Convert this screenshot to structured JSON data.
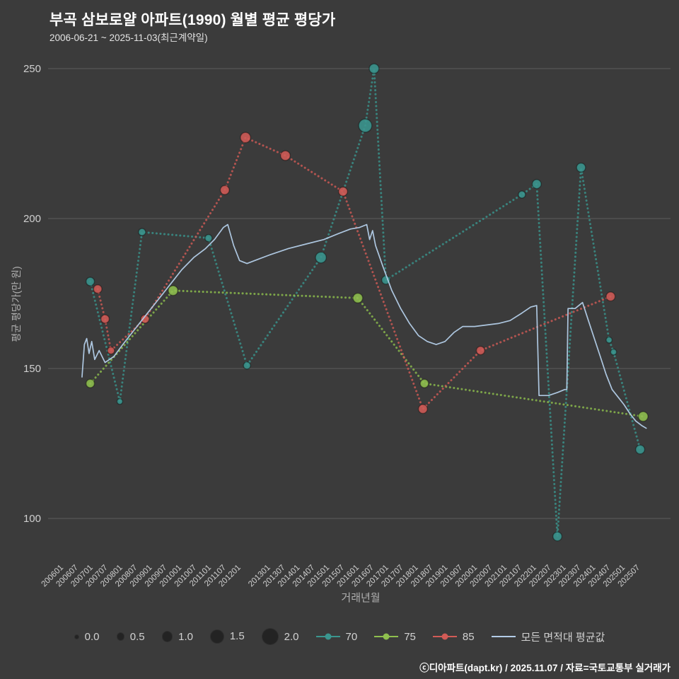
{
  "chart_data": {
    "type": "scatter",
    "title": "부곡 삼보로얄 아파트(1990) 월별 평균 평당가",
    "subtitle": "2006-06-21 ~ 2025-11-03(최근계약일)",
    "xlabel": "거래년월",
    "ylabel": "평균 평당가(만 원)",
    "yticks": [
      100,
      150,
      200,
      250
    ],
    "ylim": [
      88,
      255
    ],
    "grid": "horizontal",
    "legend_position": "bottom",
    "size_legend": [
      "0.0",
      "0.5",
      "1.0",
      "1.5",
      "2.0"
    ],
    "xtick_labels": [
      "200601",
      "200607",
      "200701",
      "200707",
      "200801",
      "200807",
      "200901",
      "200907",
      "201001",
      "201007",
      "201101",
      "201107",
      "201201",
      "201301",
      "201307",
      "201401",
      "201407",
      "201501",
      "201507",
      "201601",
      "201607",
      "201701",
      "201707",
      "201801",
      "201807",
      "201901",
      "201907",
      "202001",
      "202007",
      "202101",
      "202107",
      "202201",
      "202207",
      "202301",
      "202307",
      "202401",
      "202407",
      "202501",
      "202507"
    ],
    "series": [
      {
        "name": "70",
        "color": "#3a968f",
        "type": "scatter",
        "points": [
          [
            2006.9,
            179,
            0.8
          ],
          [
            2007.9,
            139,
            0.35
          ],
          [
            2008.65,
            195.5,
            0.6
          ],
          [
            2010.9,
            193.5,
            0.6
          ],
          [
            2012.2,
            151,
            0.6
          ],
          [
            2014.7,
            187,
            1.2
          ],
          [
            2016.2,
            231,
            1.6
          ],
          [
            2016.5,
            250,
            1.0
          ],
          [
            2016.9,
            179.5,
            0.8
          ],
          [
            2021.5,
            208,
            0.6
          ],
          [
            2022.0,
            211.5,
            0.9
          ],
          [
            2022.7,
            94,
            0.9
          ],
          [
            2023.5,
            217,
            0.9
          ],
          [
            2024.45,
            159.5,
            0.4
          ],
          [
            2024.6,
            155.5,
            0.4
          ],
          [
            2025.5,
            123,
            0.9
          ]
        ]
      },
      {
        "name": "75",
        "color": "#8fc04e",
        "type": "scatter",
        "points": [
          [
            2006.9,
            145,
            0.8
          ],
          [
            2009.7,
            176,
            1.0
          ],
          [
            2015.95,
            173.5,
            1.0
          ],
          [
            2018.2,
            145,
            0.8
          ],
          [
            2025.6,
            134,
            1.0
          ]
        ]
      },
      {
        "name": "85",
        "color": "#d25b56",
        "type": "scatter",
        "points": [
          [
            2007.15,
            176.5,
            0.8
          ],
          [
            2007.4,
            166.5,
            0.8
          ],
          [
            2007.6,
            156,
            0.6
          ],
          [
            2008.75,
            166.5,
            0.8
          ],
          [
            2011.45,
            209.5,
            0.9
          ],
          [
            2012.15,
            227,
            1.1
          ],
          [
            2013.5,
            221,
            1.0
          ],
          [
            2015.45,
            209,
            0.9
          ],
          [
            2018.15,
            136.5,
            0.9
          ],
          [
            2020.1,
            156,
            0.8
          ],
          [
            2024.5,
            174,
            0.9
          ]
        ]
      },
      {
        "name": "모든 면적대 평균값",
        "color": "#b3cde8",
        "type": "line",
        "points": [
          [
            2006.62,
            147
          ],
          [
            2006.7,
            158
          ],
          [
            2006.78,
            160
          ],
          [
            2006.86,
            155
          ],
          [
            2006.95,
            159
          ],
          [
            2007.05,
            153
          ],
          [
            2007.2,
            156
          ],
          [
            2007.4,
            152
          ],
          [
            2007.7,
            154
          ],
          [
            2008.0,
            158
          ],
          [
            2008.4,
            163
          ],
          [
            2008.8,
            168
          ],
          [
            2009.2,
            173
          ],
          [
            2009.6,
            178
          ],
          [
            2010.0,
            183
          ],
          [
            2010.4,
            187
          ],
          [
            2010.8,
            190
          ],
          [
            2011.1,
            193
          ],
          [
            2011.4,
            197
          ],
          [
            2011.55,
            198
          ],
          [
            2011.75,
            191
          ],
          [
            2011.95,
            186
          ],
          [
            2012.2,
            185
          ],
          [
            2012.6,
            186.5
          ],
          [
            2013.0,
            188
          ],
          [
            2013.6,
            190
          ],
          [
            2014.2,
            191.5
          ],
          [
            2014.8,
            193
          ],
          [
            2015.3,
            195
          ],
          [
            2015.7,
            196.5
          ],
          [
            2016.0,
            197
          ],
          [
            2016.25,
            198
          ],
          [
            2016.35,
            193
          ],
          [
            2016.45,
            196
          ],
          [
            2016.55,
            191
          ],
          [
            2016.8,
            184
          ],
          [
            2017.1,
            176
          ],
          [
            2017.4,
            170
          ],
          [
            2017.7,
            165
          ],
          [
            2018.0,
            161
          ],
          [
            2018.3,
            159
          ],
          [
            2018.6,
            158
          ],
          [
            2018.9,
            159
          ],
          [
            2019.2,
            162
          ],
          [
            2019.5,
            164
          ],
          [
            2019.9,
            164
          ],
          [
            2020.3,
            164.5
          ],
          [
            2020.7,
            165
          ],
          [
            2021.1,
            166
          ],
          [
            2021.5,
            168.5
          ],
          [
            2021.8,
            170.5
          ],
          [
            2022.0,
            171
          ],
          [
            2022.08,
            141
          ],
          [
            2022.4,
            141
          ],
          [
            2022.7,
            142
          ],
          [
            2022.95,
            143
          ],
          [
            2023.02,
            143
          ],
          [
            2023.06,
            170
          ],
          [
            2023.3,
            170
          ],
          [
            2023.55,
            172
          ],
          [
            2023.75,
            166
          ],
          [
            2023.95,
            160
          ],
          [
            2024.15,
            154
          ],
          [
            2024.35,
            148
          ],
          [
            2024.55,
            143
          ],
          [
            2024.75,
            140.5
          ],
          [
            2024.95,
            138
          ],
          [
            2025.15,
            135
          ],
          [
            2025.35,
            132.5
          ],
          [
            2025.55,
            131
          ],
          [
            2025.72,
            130
          ]
        ]
      }
    ]
  },
  "footer": {
    "credit": "ⓒ디아파트(dapt.kr) / 2025.11.07 / 자료=국토교통부 실거래가"
  }
}
